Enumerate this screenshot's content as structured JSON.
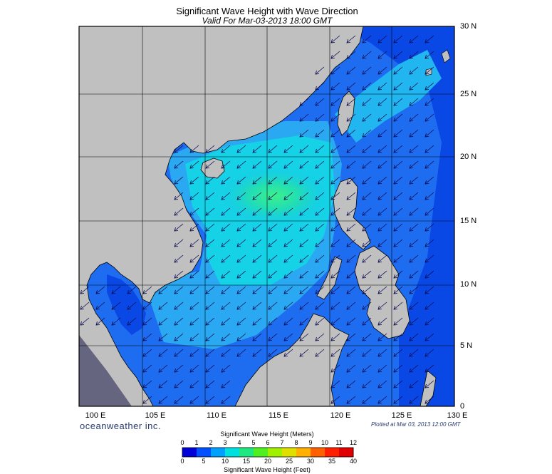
{
  "header": {
    "title": "Significant Wave Height with Wave Direction",
    "subtitle": "Valid For Mar-03-2013 18:00 GMT"
  },
  "map": {
    "region": "South China Sea",
    "lat_labels": [
      "30 N",
      "25 N",
      "20 N",
      "15 N",
      "10 N",
      "5 N",
      "0"
    ],
    "lon_labels": [
      "100 E",
      "105 E",
      "110 E",
      "115 E",
      "120 E",
      "125 E",
      "130 E"
    ],
    "colors": {
      "land": "#c0c0c0",
      "deep_blue": "#0a2fd6",
      "mid_blue": "#1e6cf0",
      "light_blue": "#2aa8f2",
      "cyan": "#15d2e6",
      "green": "#2ee8a0"
    },
    "arrow_direction": "from northeast"
  },
  "footer": {
    "brand": "oceanweather inc.",
    "plotted": "Plotted at Mar 03, 2013 12:00 GMT"
  },
  "colorbar": {
    "title_top": "Significant Wave Height (Meters)",
    "title_bottom": "Significant Wave Height (Feet)",
    "meter_ticks": [
      "0",
      "1",
      "2",
      "3",
      "4",
      "5",
      "6",
      "7",
      "8",
      "9",
      "10",
      "11",
      "12"
    ],
    "feet_ticks": [
      "0",
      "5",
      "10",
      "15",
      "20",
      "25",
      "30",
      "35",
      "40"
    ],
    "colors": [
      "#0000d8",
      "#0050ff",
      "#00a0ff",
      "#00e0e0",
      "#20e880",
      "#50f020",
      "#a0f000",
      "#e0e000",
      "#ffb000",
      "#ff6000",
      "#ff2000",
      "#e00000"
    ]
  }
}
